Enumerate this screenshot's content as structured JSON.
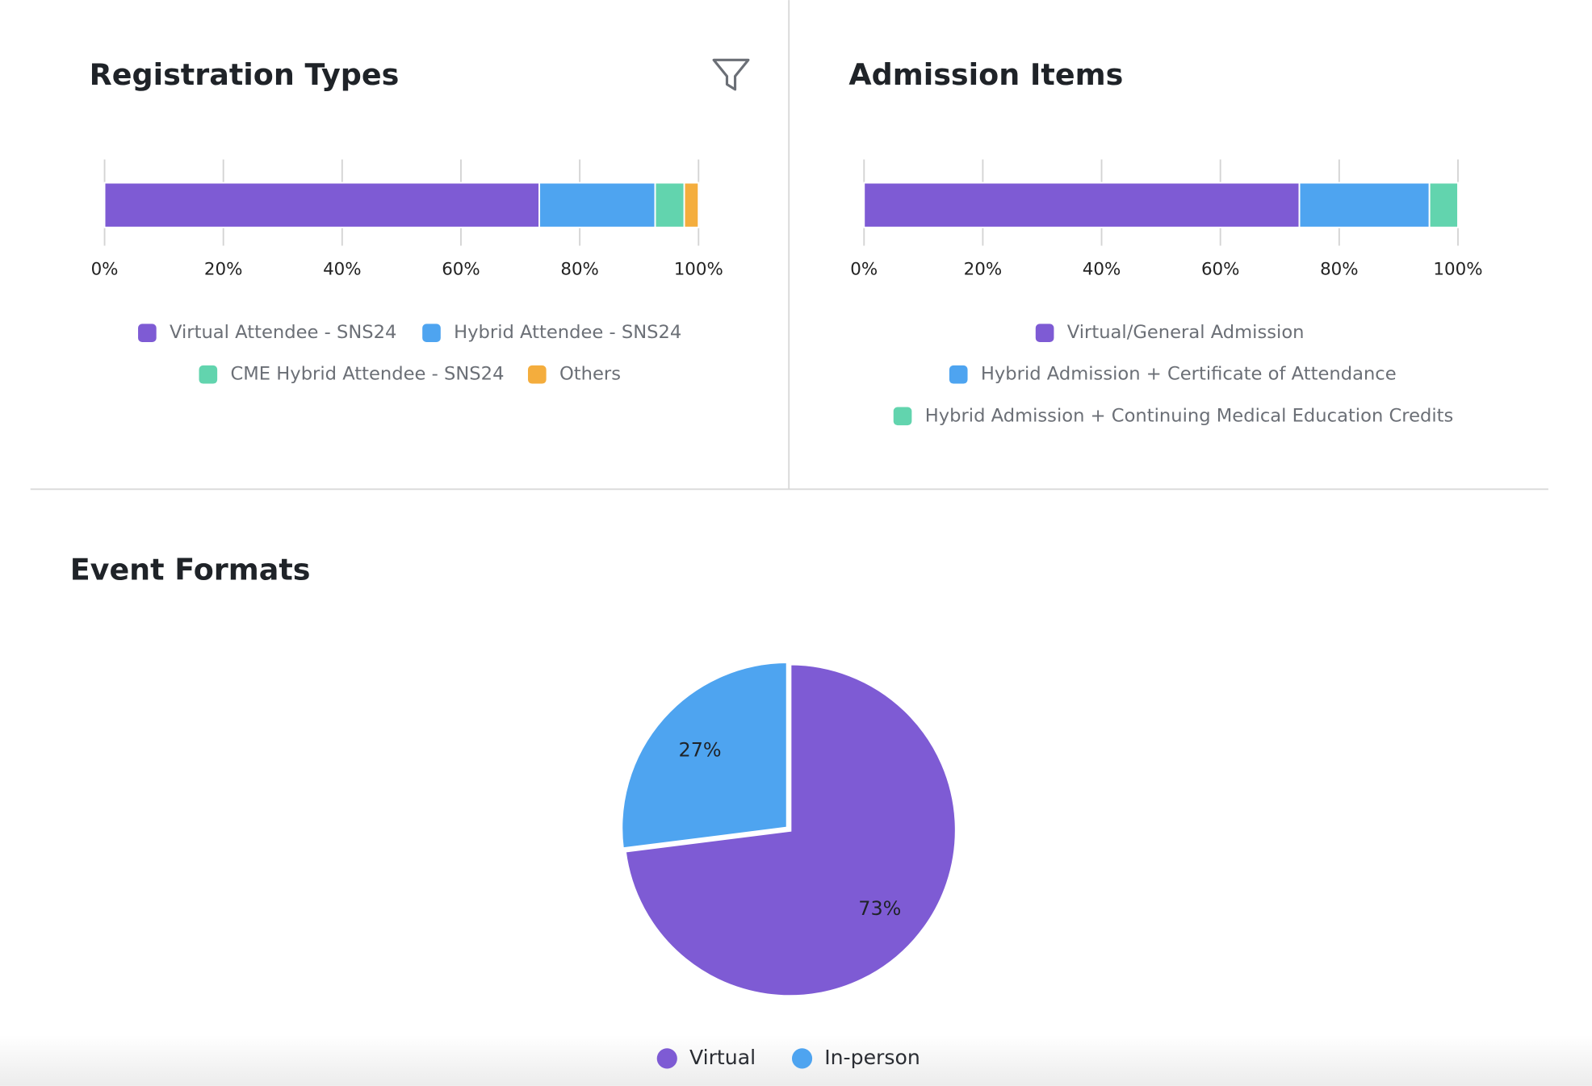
{
  "chart_data": [
    {
      "type": "bar",
      "orientation": "horizontal",
      "stacked": true,
      "title": "Registration Types",
      "xlim": [
        0,
        100
      ],
      "xticks": [
        {
          "value": 0,
          "label": "0%"
        },
        {
          "value": 20,
          "label": "20%"
        },
        {
          "value": 40,
          "label": "40%"
        },
        {
          "value": 60,
          "label": "60%"
        },
        {
          "value": 80,
          "label": "80%"
        },
        {
          "value": 100,
          "label": "100%"
        }
      ],
      "series": [
        {
          "name": "Virtual Attendee - SNS24",
          "color": "#7e5bd4",
          "values": [
            73.2
          ]
        },
        {
          "name": "Hybrid Attendee - SNS24",
          "color": "#4ea4f0",
          "values": [
            19.5
          ]
        },
        {
          "name": "CME Hybrid Attendee - SNS24",
          "color": "#62d4ae",
          "values": [
            4.9
          ]
        },
        {
          "name": "Others",
          "color": "#f4ad3d",
          "values": [
            2.4
          ]
        }
      ]
    },
    {
      "type": "bar",
      "orientation": "horizontal",
      "stacked": true,
      "title": "Admission Items",
      "xlim": [
        0,
        100
      ],
      "xticks": [
        {
          "value": 0,
          "label": "0%"
        },
        {
          "value": 20,
          "label": "20%"
        },
        {
          "value": 40,
          "label": "40%"
        },
        {
          "value": 60,
          "label": "60%"
        },
        {
          "value": 80,
          "label": "80%"
        },
        {
          "value": 100,
          "label": "100%"
        }
      ],
      "series": [
        {
          "name": "Virtual/General Admission",
          "color": "#7e5bd4",
          "values": [
            73.3
          ]
        },
        {
          "name": "Hybrid Admission + Certificate of Attendance",
          "color": "#4ea4f0",
          "values": [
            21.9
          ]
        },
        {
          "name": "Hybrid Admission + Continuing Medical Education Credits",
          "color": "#62d4ae",
          "values": [
            4.8
          ]
        }
      ]
    },
    {
      "type": "pie",
      "title": "Event Formats",
      "labels": [
        "Virtual",
        "In-person"
      ],
      "values": [
        73,
        27
      ],
      "value_labels": [
        "73%",
        "27%"
      ],
      "colors": [
        "#7e5bd4",
        "#4ea4f0"
      ]
    }
  ]
}
